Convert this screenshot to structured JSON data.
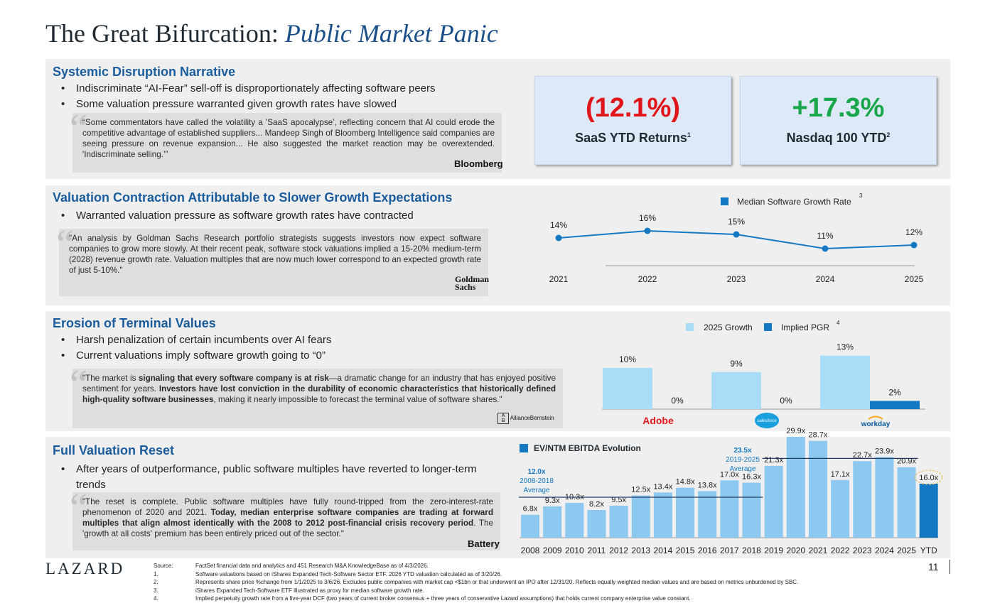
{
  "title": {
    "main": "The Great Bifurcation:",
    "sub": "Public Market Panic"
  },
  "section1": {
    "heading": "Systemic Disruption Narrative",
    "bullets": [
      "Indiscriminate “AI-Fear” sell-off is disproportionately affecting software peers",
      "Some valuation pressure warranted given growth rates have slowed"
    ],
    "quote": "“Some commentators have called the volatility a 'SaaS apocalypse', reflecting concern that AI could erode the competitive advantage of established suppliers... Mandeep Singh of Bloomberg Intelligence said companies are seeing pressure on revenue expansion... He also suggested the market reaction may be overextended. 'Indiscriminate selling.’”",
    "source": "Bloomberg",
    "stats": [
      {
        "value": "(12.1%)",
        "label": "SaaS YTD Returns",
        "footnote": "1",
        "color": "#e0161b"
      },
      {
        "value": "+17.3%",
        "label": "Nasdaq 100 YTD",
        "footnote": "2",
        "color": "#1aa64a"
      }
    ]
  },
  "section2": {
    "heading": "Valuation Contraction Attributable to Slower Growth Expectations",
    "bullets": [
      "Warranted valuation pressure as software growth rates have contracted"
    ],
    "quote": "\"An analysis by Goldman Sachs Research portfolio strategists suggests investors now expect software companies to grow more slowly. At their recent peak, software stock valuations implied a 15-20% medium-term (2028) revenue growth rate. Valuation multiples that are now much lower correspond to an expected growth rate of just 5-10%.\"",
    "source": [
      "Goldman",
      "Sachs"
    ]
  },
  "section3": {
    "heading": "Erosion of Terminal Values",
    "bullets": [
      "Harsh penalization of certain incumbents over AI fears",
      "Current valuations imply software growth going to “0”"
    ],
    "quote_parts": [
      {
        "t": "\"The market is ",
        "b": false
      },
      {
        "t": "signaling that every software company is at risk",
        "b": true
      },
      {
        "t": "—a dramatic change for an industry that has enjoyed positive sentiment for years. ",
        "b": false
      },
      {
        "t": "Investors have lost conviction in the durability of economic characteristics that historically defined high-quality software businesses",
        "b": true
      },
      {
        "t": ", making it nearly impossible to forecast the terminal value of software shares.\"",
        "b": false
      }
    ],
    "source": "AllianceBernstein"
  },
  "section4": {
    "heading": "Full Valuation Reset",
    "bullets": [
      "After years of outperformance, public software multiples have reverted to longer-term trends"
    ],
    "quote_parts": [
      {
        "t": "\"The reset is complete. Public software multiples have fully round-tripped from the zero-interest-rate phenomenon of 2020 and 2021. ",
        "b": false
      },
      {
        "t": "Today, median enterprise software companies are trading at forward multiples that align almost identically with the 2008 to 2012 post-financial crisis recovery period",
        "b": true
      },
      {
        "t": ". The 'growth at all costs' premium has been entirely priced out of the sector.\"",
        "b": false
      }
    ],
    "source": "Battery"
  },
  "chart_data": [
    {
      "type": "line",
      "legend": [
        "Median Software Growth Rate"
      ],
      "legend_footnote": "3",
      "x": [
        "2021",
        "2022",
        "2023",
        "2024",
        "2025"
      ],
      "series": [
        {
          "name": "Median Software Growth Rate",
          "values": [
            14,
            16,
            15,
            11,
            12
          ]
        }
      ],
      "labels": [
        "14%",
        "16%",
        "15%",
        "11%",
        "12%"
      ],
      "color": "#1479c2"
    },
    {
      "type": "bar",
      "legend": [
        "2025 Growth",
        "Implied PGR"
      ],
      "legend_footnote": "4",
      "categories": [
        "Adobe",
        "salesforce",
        "workday"
      ],
      "series": [
        {
          "name": "2025 Growth",
          "values": [
            10,
            9,
            13
          ],
          "labels": [
            "10%",
            "9%",
            "13%"
          ],
          "color": "#a9dcf7"
        },
        {
          "name": "Implied PGR",
          "values": [
            0,
            0,
            2
          ],
          "labels": [
            "0%",
            "0%",
            "2%"
          ],
          "color": "#1479c2"
        }
      ]
    },
    {
      "type": "bar",
      "title": "EV/NTM EBITDA Evolution",
      "categories": [
        "2008",
        "2009",
        "2010",
        "2011",
        "2012",
        "2013",
        "2014",
        "2015",
        "2016",
        "2017",
        "2018",
        "2019",
        "2020",
        "2021",
        "2022",
        "2023",
        "2024",
        "2025",
        "YTD"
      ],
      "values": [
        6.8,
        9.3,
        10.3,
        8.2,
        9.5,
        12.5,
        13.4,
        14.8,
        13.8,
        17.0,
        16.3,
        21.3,
        29.9,
        28.7,
        17.1,
        22.7,
        23.9,
        20.9,
        16.0
      ],
      "labels": [
        "6.8x",
        "9.3x",
        "10.3x",
        "8.2x",
        "9.5x",
        "12.5x",
        "13.4x",
        "14.8x",
        "13.8x",
        "17.0x",
        "16.3x",
        "21.3x",
        "29.9x",
        "28.7x",
        "17.1x",
        "22.7x",
        "23.9x",
        "20.9x",
        "16.0x"
      ],
      "averages": [
        {
          "value": "12.0x",
          "label": [
            "2008-2018",
            "Average"
          ],
          "from": "2008",
          "to": "2018",
          "level": 12.0
        },
        {
          "value": "23.5x",
          "label": [
            "2019-2025",
            "Average"
          ],
          "from": "2019",
          "to": "2025",
          "level": 23.5
        }
      ],
      "colors": {
        "bar": "#8cc8f0",
        "ytd": "#1479c2"
      }
    }
  ],
  "footer": {
    "logo": "LAZARD",
    "page": "11",
    "sources": [
      {
        "k": "Source:",
        "v": "FactSet financial data and analytics and 451 Research M&A KnowledgeBase as of 4/3/2026."
      },
      {
        "k": "1.",
        "v": "Software valuations based on iShares Expanded Tech-Software Sector ETF. 2026 YTD valuation calculated as of 3/20/26."
      },
      {
        "k": "2.",
        "v": "Represents share price %change from 1/1/2025 to 3/6/26. Excludes public companies with market cap <$1bn or that underwent an IPO after 12/31/20.  Reflects equally weighted median values and are based on metrics unburdened by SBC."
      },
      {
        "k": "3.",
        "v": "iShares Expanded Tech-Software ETF illustrated as proxy for median software growth rate."
      },
      {
        "k": "4.",
        "v": "Implied perpetuity growth rate from a five-year DCF (two years of current broker consensus + three years of conservative Lazard assumptions) that holds current company enterprise value constant."
      }
    ]
  }
}
